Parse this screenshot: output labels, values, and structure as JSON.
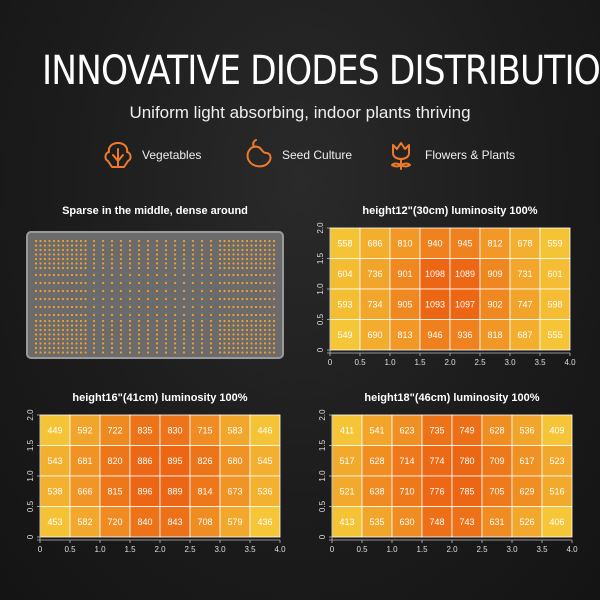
{
  "header": {
    "title": "INNOVATIVE DIODES DISTRIBUTION",
    "subtitle": "Uniform light absorbing, indoor plants thriving"
  },
  "categories": [
    {
      "label": "Vegetables",
      "icon": "vegetables-icon"
    },
    {
      "label": "Seed Culture",
      "icon": "seed-icon"
    },
    {
      "label": "Flowers & Plants",
      "icon": "flower-icon"
    }
  ],
  "accent_color": "#f07a2a",
  "led_panel": {
    "label": "Sparse in the middle, dense around",
    "led_color": "#f0a030"
  },
  "chart_data": [
    {
      "type": "heatmap",
      "title": "height12\"(30cm)   luminosity 100%",
      "x_ticks": [
        "0",
        "0.5",
        "1.0",
        "1.5",
        "2.0",
        "2.5",
        "3.0",
        "3.5",
        "4.0"
      ],
      "y_ticks": [
        "0",
        "0.5",
        "1.0",
        "1.5",
        "2.0"
      ],
      "xlim": [
        0,
        4.0
      ],
      "ylim": [
        0,
        2.0
      ],
      "values": [
        [
          558,
          686,
          810,
          940,
          945,
          812,
          678,
          559
        ],
        [
          604,
          736,
          901,
          1098,
          1089,
          909,
          731,
          601
        ],
        [
          593,
          734,
          905,
          1093,
          1097,
          902,
          747,
          598
        ],
        [
          549,
          690,
          813,
          946,
          936,
          818,
          687,
          555
        ]
      ]
    },
    {
      "type": "heatmap",
      "title": "height16\"(41cm)   luminosity 100%",
      "x_ticks": [
        "0",
        "0.5",
        "1.0",
        "1.5",
        "2.0",
        "2.5",
        "3.0",
        "3.5",
        "4.0"
      ],
      "y_ticks": [
        "0",
        "0.5",
        "1.0",
        "1.5",
        "2.0"
      ],
      "xlim": [
        0,
        4.0
      ],
      "ylim": [
        0,
        2.0
      ],
      "values": [
        [
          449,
          592,
          722,
          835,
          830,
          715,
          583,
          446
        ],
        [
          543,
          681,
          820,
          886,
          895,
          826,
          680,
          545
        ],
        [
          538,
          666,
          815,
          896,
          889,
          814,
          673,
          536
        ],
        [
          453,
          582,
          720,
          840,
          843,
          708,
          579,
          436
        ]
      ]
    },
    {
      "type": "heatmap",
      "title": "height18\"(46cm)   luminosity 100%",
      "x_ticks": [
        "0",
        "0.5",
        "1.0",
        "1.5",
        "2.0",
        "2.5",
        "3.0",
        "3.5",
        "4.0"
      ],
      "y_ticks": [
        "0",
        "0.5",
        "1.0",
        "1.5",
        "2.0"
      ],
      "xlim": [
        0,
        4.0
      ],
      "ylim": [
        0,
        2.0
      ],
      "values": [
        [
          411,
          541,
          623,
          735,
          749,
          628,
          536,
          409
        ],
        [
          517,
          628,
          714,
          774,
          780,
          709,
          617,
          523
        ],
        [
          521,
          638,
          710,
          776,
          785,
          705,
          629,
          516
        ],
        [
          413,
          535,
          630,
          748,
          743,
          631,
          526,
          406
        ]
      ]
    }
  ]
}
